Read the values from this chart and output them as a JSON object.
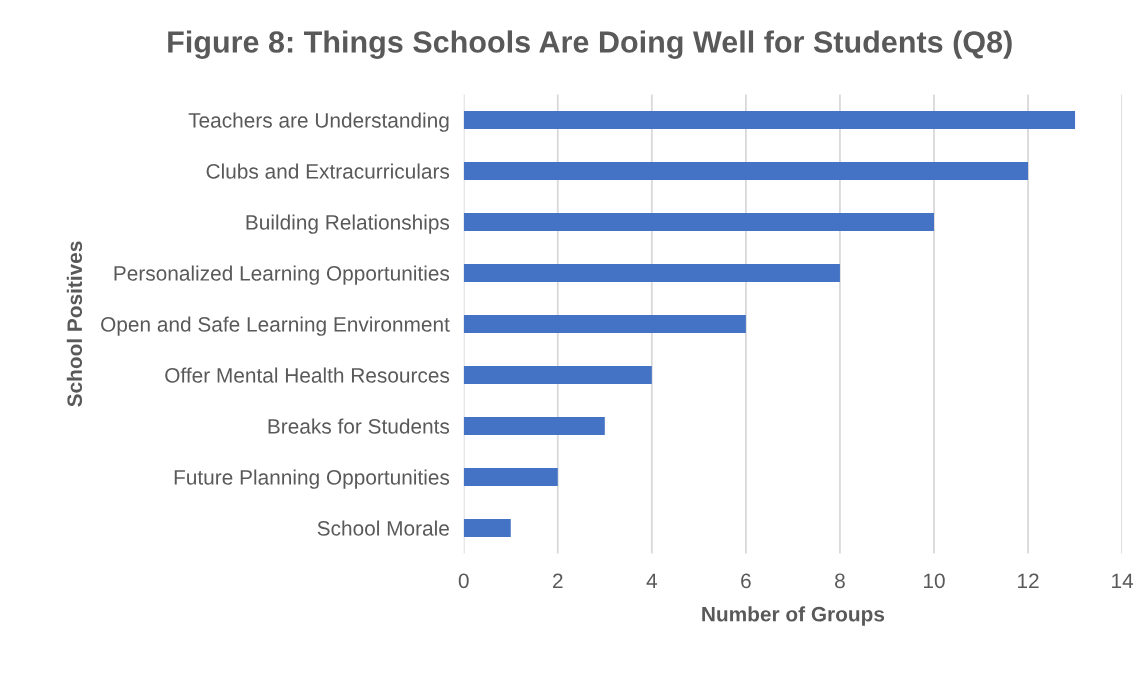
{
  "chart_data": {
    "type": "bar",
    "orientation": "horizontal",
    "title": "Figure 8: Things Schools Are Doing Well for Students (Q8)",
    "xlabel": "Number of Groups",
    "ylabel": "School Positives",
    "categories": [
      "Teachers are Understanding",
      "Clubs and Extracurriculars",
      "Building Relationships",
      "Personalized Learning Opportunities",
      "Open and Safe Learning Environment",
      "Offer Mental Health Resources",
      "Breaks for Students",
      "Future Planning Opportunities",
      "School Morale"
    ],
    "values": [
      13,
      12,
      10,
      8,
      6,
      4,
      3,
      2,
      1
    ],
    "color": "#4472c4",
    "xlim": [
      0,
      14
    ],
    "xticks": [
      0,
      2,
      4,
      6,
      8,
      10,
      12,
      14
    ],
    "grid": "x",
    "legend": false
  }
}
